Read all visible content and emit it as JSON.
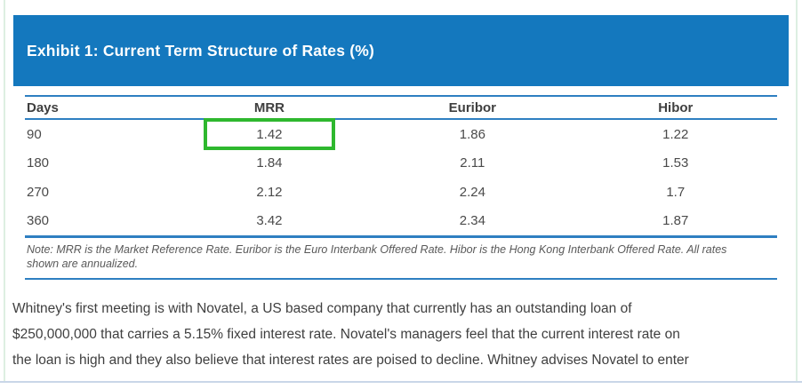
{
  "colors": {
    "banner_bg": "#1478BE",
    "banner_text": "#FFFFFF",
    "table_line": "#2E7FC1",
    "text_dark": "#3F3F3F",
    "cell_text": "#4A4A4A",
    "note_text": "#595959",
    "highlight_green": "#2EB82E",
    "side_border": "#DDEFE2",
    "bottom_rule": "#C9D6E8"
  },
  "exhibit": {
    "title": "Exhibit 1: Current Term Structure of Rates (%)",
    "table": {
      "columns": [
        "Days",
        "MRR",
        "Euribor",
        "Hibor"
      ],
      "rows": [
        [
          "90",
          "1.42",
          "1.86",
          "1.22"
        ],
        [
          "180",
          "1.84",
          "2.11",
          "1.53"
        ],
        [
          "270",
          "2.12",
          "2.24",
          "1.7"
        ],
        [
          "360",
          "3.42",
          "2.34",
          "1.87"
        ]
      ],
      "highlight": {
        "row": 0,
        "col": 1
      }
    },
    "note_lines": [
      "Note: MRR is the Market Reference Rate. Euribor is the Euro Interbank Offered Rate. Hibor is the Hong Kong Interbank Offered Rate. All rates",
      "shown are annualized."
    ]
  },
  "body": {
    "paragraph_lines": [
      "Whitney's first meeting is with Novatel, a US based company that currently has an outstanding loan of",
      "$250,000,000 that carries a 5.15% fixed interest rate. Novatel's managers feel that the current interest rate on",
      "the loan is high and they also believe that interest rates are poised to decline. Whitney advises Novatel to enter"
    ]
  }
}
